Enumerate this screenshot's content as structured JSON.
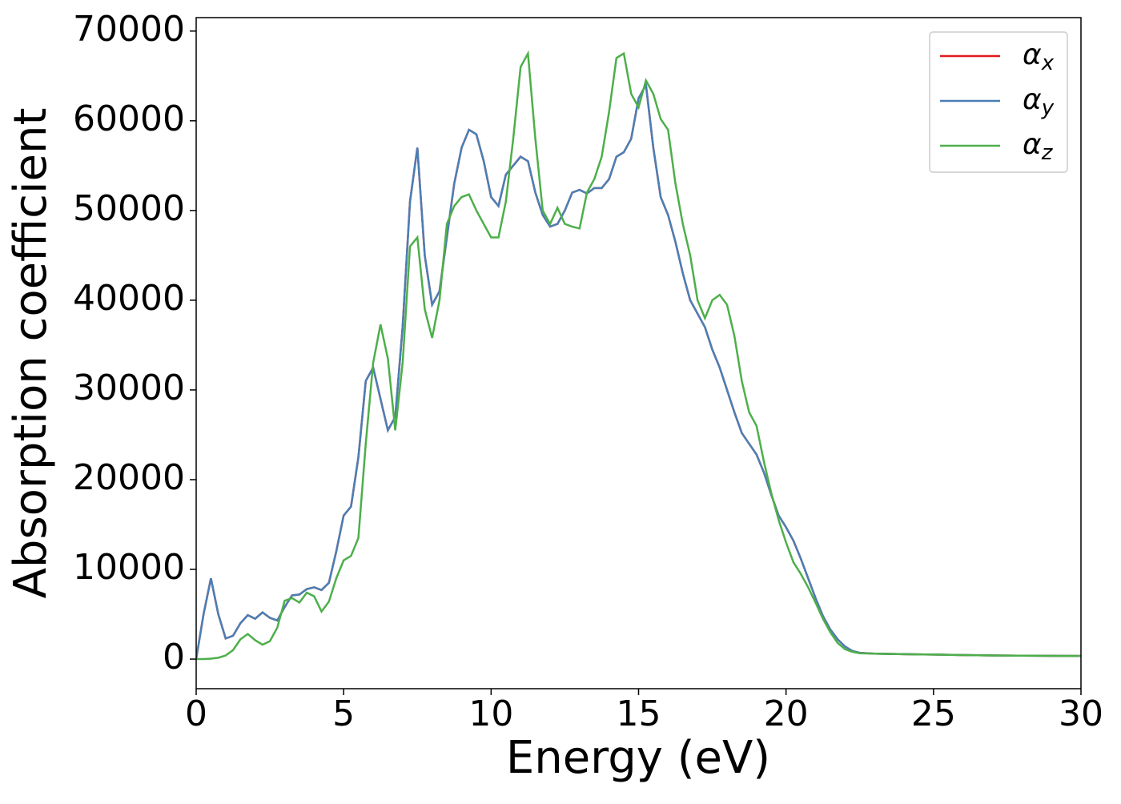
{
  "chart_data": {
    "type": "line",
    "xlabel": "Energy (eV)",
    "ylabel": "Absorption coefficient",
    "x": [
      0,
      0.25,
      0.5,
      0.75,
      1,
      1.25,
      1.5,
      1.75,
      2,
      2.25,
      2.5,
      2.75,
      3,
      3.25,
      3.5,
      3.75,
      4,
      4.25,
      4.5,
      4.75,
      5,
      5.25,
      5.5,
      5.75,
      6,
      6.25,
      6.5,
      6.75,
      7,
      7.25,
      7.5,
      7.75,
      8,
      8.25,
      8.5,
      8.75,
      9,
      9.25,
      9.5,
      9.75,
      10,
      10.25,
      10.5,
      10.75,
      11,
      11.25,
      11.5,
      11.75,
      12,
      12.25,
      12.5,
      12.75,
      13,
      13.25,
      13.5,
      13.75,
      14,
      14.25,
      14.5,
      14.75,
      15,
      15.25,
      15.5,
      15.75,
      16,
      16.25,
      16.5,
      16.75,
      17,
      17.25,
      17.5,
      17.75,
      18,
      18.25,
      18.5,
      18.75,
      19,
      19.25,
      19.5,
      19.75,
      20,
      20.25,
      20.5,
      20.75,
      21,
      21.25,
      21.5,
      21.75,
      22,
      22.25,
      22.5,
      23,
      24,
      25,
      26,
      27,
      28,
      29,
      30
    ],
    "series": [
      {
        "name": "αx",
        "color": "#e41a1c",
        "values": [
          0,
          5000,
          9000,
          5000,
          2300,
          2600,
          4000,
          4900,
          4500,
          5200,
          4600,
          4300,
          5800,
          7100,
          7200,
          7800,
          8000,
          7700,
          8500,
          12000,
          16000,
          17000,
          22500,
          31000,
          32500,
          29000,
          25500,
          27000,
          37000,
          51000,
          57000,
          45000,
          39500,
          41000,
          47000,
          53000,
          57000,
          59000,
          58500,
          55500,
          51500,
          50500,
          54000,
          55000,
          56000,
          55500,
          52000,
          49500,
          48200,
          48500,
          50000,
          52000,
          52300,
          51900,
          52500,
          52500,
          53500,
          56000,
          56500,
          58000,
          62500,
          64000,
          57000,
          51500,
          49500,
          46500,
          43000,
          40000,
          38500,
          37000,
          34500,
          32500,
          30000,
          27500,
          25200,
          24000,
          22800,
          20800,
          18300,
          16000,
          14700,
          13200,
          11200,
          9000,
          6800,
          4800,
          3300,
          2200,
          1400,
          900,
          700,
          600,
          550,
          500,
          450,
          400,
          380,
          360,
          350
        ]
      },
      {
        "name": "αy",
        "color": "#4a7fb5",
        "values": [
          0,
          5000,
          9000,
          5000,
          2300,
          2600,
          4000,
          4900,
          4500,
          5200,
          4600,
          4300,
          5800,
          7100,
          7200,
          7800,
          8000,
          7700,
          8500,
          12000,
          16000,
          17000,
          22500,
          31000,
          32500,
          29000,
          25500,
          27000,
          37000,
          51000,
          57000,
          45000,
          39500,
          41000,
          47000,
          53000,
          57000,
          59000,
          58500,
          55500,
          51500,
          50500,
          54000,
          55000,
          56000,
          55500,
          52000,
          49500,
          48200,
          48500,
          50000,
          52000,
          52300,
          51900,
          52500,
          52500,
          53500,
          56000,
          56500,
          58000,
          62500,
          64000,
          57000,
          51500,
          49500,
          46500,
          43000,
          40000,
          38500,
          37000,
          34500,
          32500,
          30000,
          27500,
          25200,
          24000,
          22800,
          20800,
          18300,
          16000,
          14700,
          13200,
          11200,
          9000,
          6800,
          4800,
          3300,
          2200,
          1400,
          900,
          700,
          600,
          550,
          500,
          450,
          400,
          380,
          360,
          350
        ]
      },
      {
        "name": "αz",
        "color": "#4daf4a",
        "values": [
          0,
          0,
          50,
          150,
          400,
          1000,
          2200,
          2800,
          2100,
          1600,
          2000,
          3500,
          6500,
          6800,
          6300,
          7400,
          7000,
          5300,
          6400,
          9000,
          11000,
          11500,
          13500,
          24000,
          33000,
          37300,
          33500,
          25500,
          33000,
          46000,
          47000,
          39000,
          35800,
          40000,
          48500,
          50500,
          51500,
          51800,
          50000,
          48500,
          47000,
          47000,
          51000,
          58000,
          66000,
          67500,
          58000,
          50000,
          48500,
          50300,
          48500,
          48200,
          48000,
          52000,
          53500,
          56000,
          61000,
          67000,
          67500,
          63000,
          61500,
          64500,
          63000,
          60200,
          59000,
          53000,
          48500,
          45000,
          40000,
          38000,
          40000,
          40600,
          39500,
          36000,
          31000,
          27500,
          26000,
          22000,
          18500,
          15500,
          13000,
          10800,
          9500,
          8000,
          6300,
          4500,
          3000,
          1800,
          1100,
          800,
          650,
          600,
          550,
          500,
          450,
          400,
          380,
          360,
          350
        ]
      }
    ],
    "xlim": [
      0,
      30
    ],
    "xticks": [
      0,
      5,
      10,
      15,
      20,
      25,
      30
    ],
    "ylim": [
      -3300,
      71500
    ],
    "yticks": [
      0,
      10000,
      20000,
      30000,
      40000,
      50000,
      60000,
      70000
    ],
    "legend": "upper right",
    "grid": false
  }
}
